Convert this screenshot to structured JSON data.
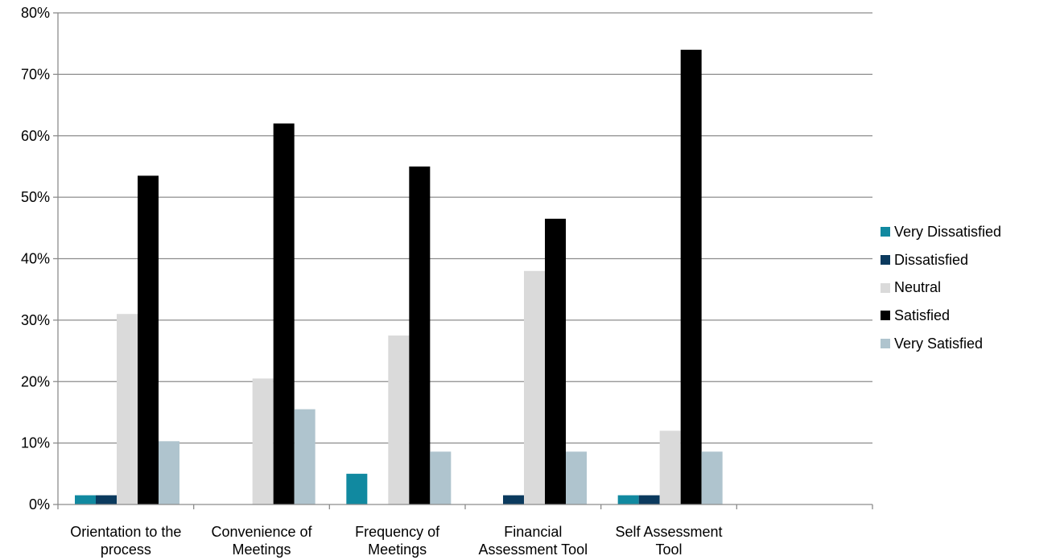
{
  "chart_data": {
    "type": "bar",
    "categories": [
      [
        "Orientation to the",
        "process"
      ],
      [
        "Convenience of",
        "Meetings"
      ],
      [
        "Frequency of",
        "Meetings"
      ],
      [
        "Financial",
        "Assessment Tool"
      ],
      [
        "Self Assessment",
        "Tool"
      ],
      [
        "",
        ""
      ]
    ],
    "series": [
      {
        "name": "Very Dissatisfied",
        "color": "#1189A0",
        "values": [
          1.5,
          0,
          5,
          0,
          1.5,
          null
        ]
      },
      {
        "name": "Dissatisfied",
        "color": "#0B3A5E",
        "values": [
          1.5,
          0,
          0,
          1.5,
          1.5,
          null
        ]
      },
      {
        "name": "Neutral",
        "color": "#DADADA",
        "values": [
          31,
          20.5,
          27.5,
          38,
          12,
          null
        ]
      },
      {
        "name": "Satisfied",
        "color": "#000000",
        "values": [
          53.5,
          62,
          55,
          46.5,
          74,
          null
        ]
      },
      {
        "name": "Very Satisfied",
        "color": "#AFC4CE",
        "values": [
          10.3,
          15.5,
          8.6,
          8.6,
          8.6,
          null
        ]
      }
    ],
    "ylim": [
      0,
      80
    ],
    "yticks": [
      0,
      10,
      20,
      30,
      40,
      50,
      60,
      70,
      80
    ],
    "ytick_labels": [
      "0%",
      "10%",
      "20%",
      "30%",
      "40%",
      "50%",
      "60%",
      "70%",
      "80%"
    ],
    "grid": true,
    "legend_position": "right",
    "title": "",
    "xlabel": "",
    "ylabel": ""
  }
}
